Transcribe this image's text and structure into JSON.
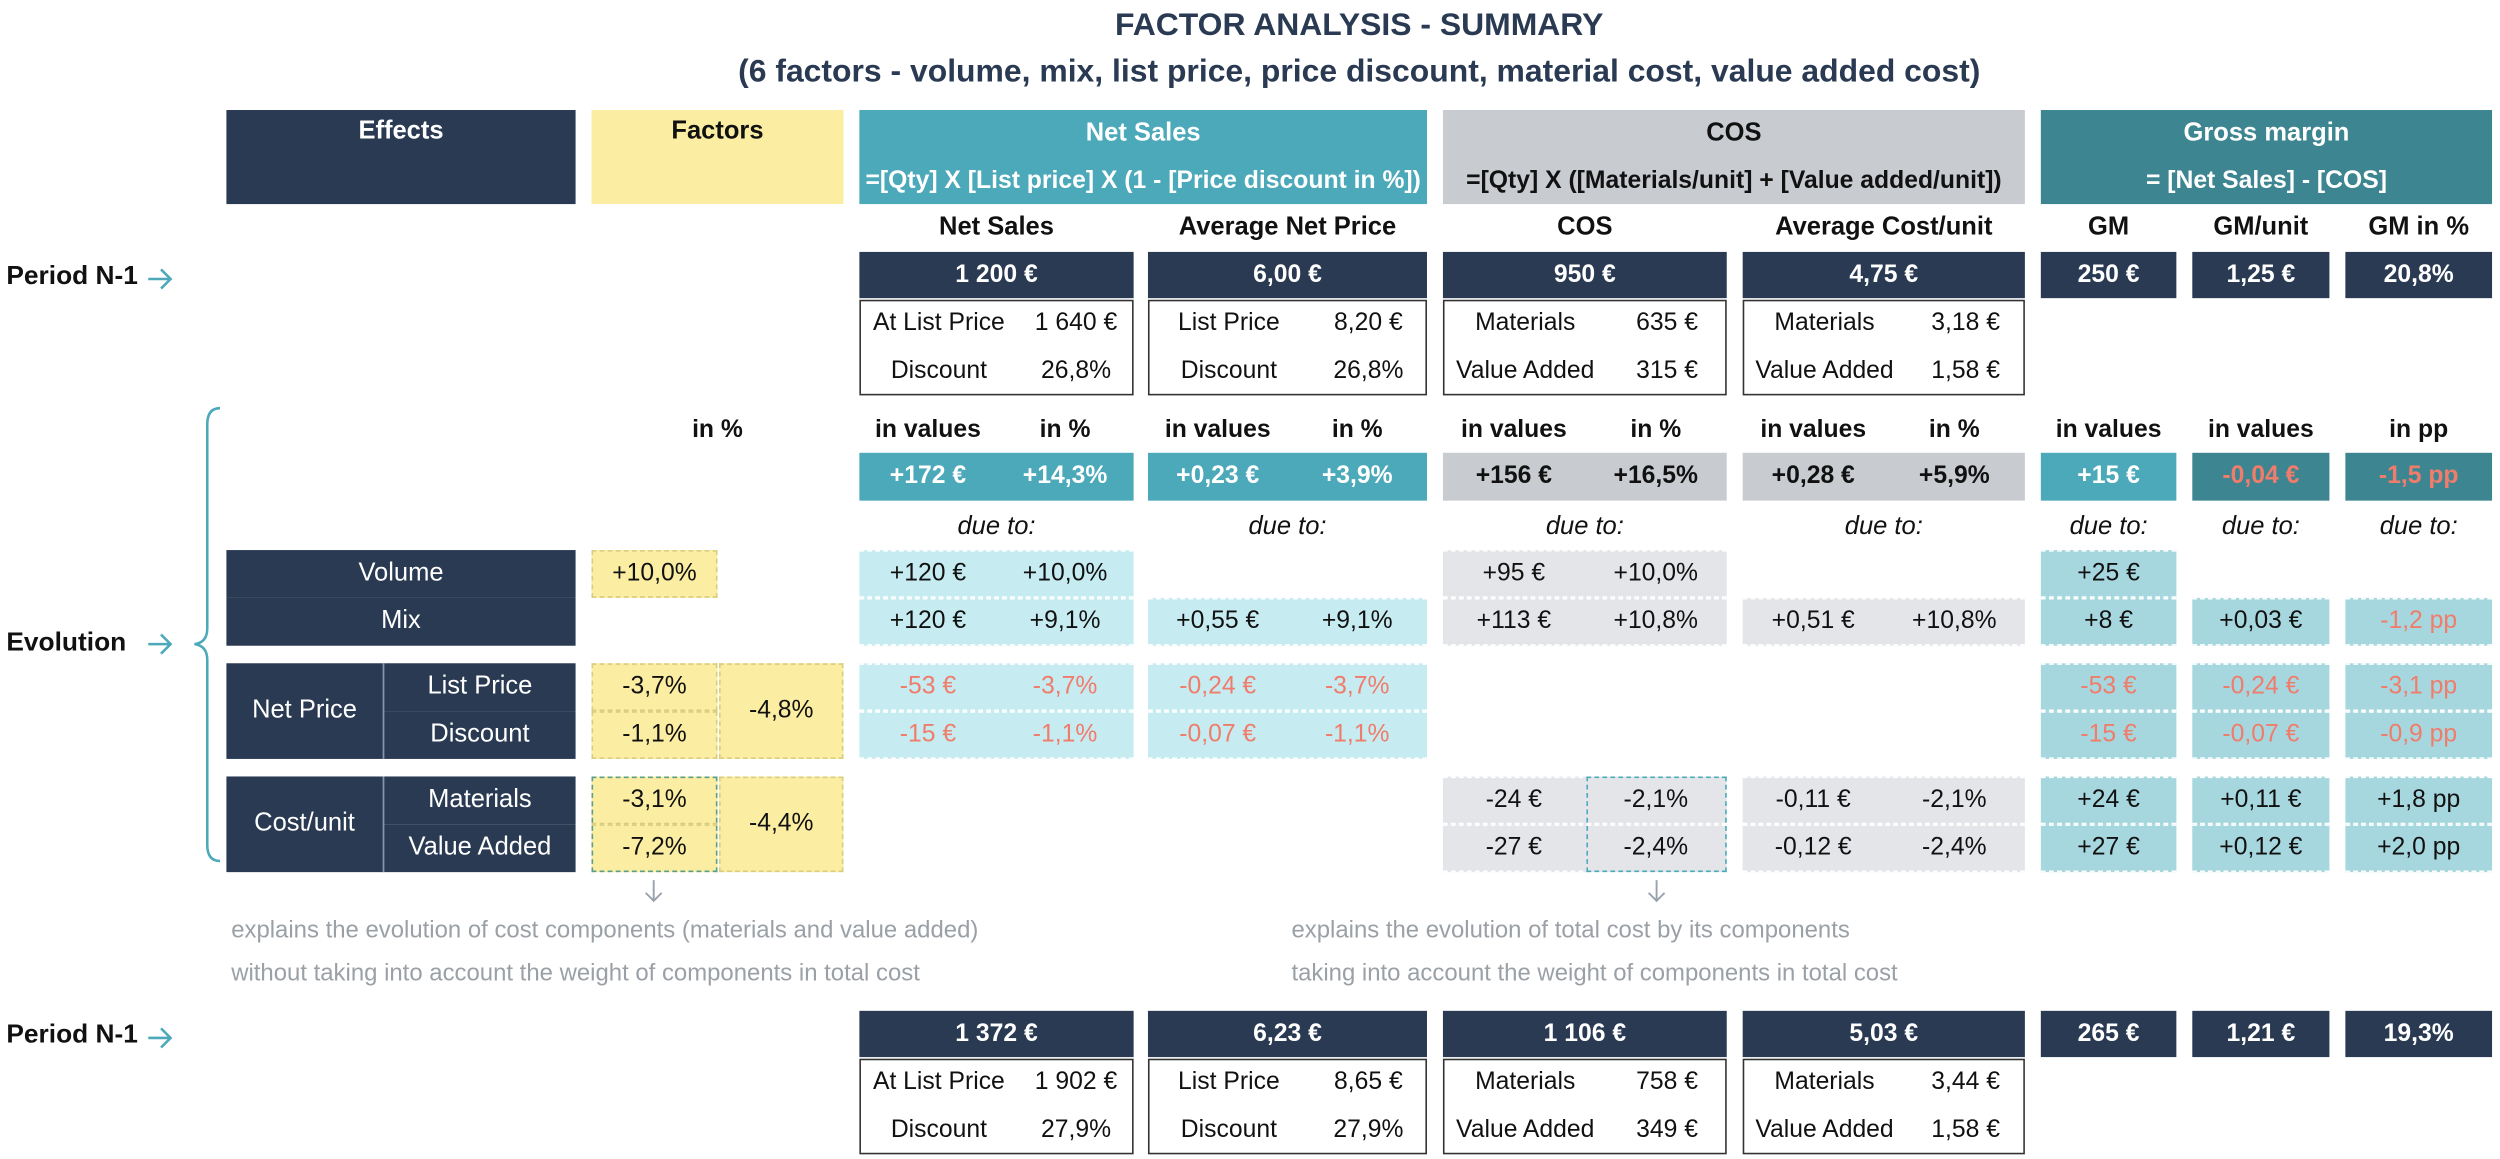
{
  "title": "FACTOR ANALYSIS - SUMMARY",
  "subtitle": "(6 factors - volume, mix, list price, price discount, material cost, value added cost)",
  "headers": {
    "effects": "Effects",
    "factors": "Factors",
    "net_sales": {
      "title": "Net Sales",
      "formula": "=[Qty] X [List price] X (1 - [Price discount in %])"
    },
    "cos": {
      "title": "COS",
      "formula": "=[Qty] X ([Materials/unit] + [Value added/unit])"
    },
    "gross_margin": {
      "title": "Gross margin",
      "formula": "= [Net Sales] - [COS]"
    }
  },
  "columns": [
    "Net Sales",
    "Average Net Price",
    "COS",
    "Average Cost/unit",
    "GM",
    "GM/unit",
    "GM in %"
  ],
  "period_start": {
    "label": "Period N-1",
    "totals": [
      "1 200 €",
      "6,00 €",
      "950 €",
      "4,75 €",
      "250 €",
      "1,25 €",
      "20,8%"
    ],
    "details": [
      [
        [
          "At List Price",
          "1 640 €"
        ],
        [
          "Discount",
          "26,8%"
        ]
      ],
      [
        [
          "List Price",
          "8,20 €"
        ],
        [
          "Discount",
          "26,8%"
        ]
      ],
      [
        [
          "Materials",
          "635 €"
        ],
        [
          "Value Added",
          "315 €"
        ]
      ],
      [
        [
          "Materials",
          "3,18 €"
        ],
        [
          "Value Added",
          "1,58 €"
        ]
      ]
    ]
  },
  "evolution": {
    "label": "Evolution",
    "factors_unit": "in %",
    "units": [
      [
        "in values",
        "in %"
      ],
      [
        "in values",
        "in %"
      ],
      [
        "in values",
        "in %"
      ],
      [
        "in values",
        "in %"
      ],
      [
        "in values"
      ],
      [
        "in values"
      ],
      [
        "in pp"
      ]
    ],
    "totals": [
      [
        "+172 €",
        "+14,3%"
      ],
      [
        "+0,23 €",
        "+3,9%"
      ],
      [
        "+156 €",
        "+16,5%"
      ],
      [
        "+0,28 €",
        "+5,9%"
      ],
      [
        "+15 €"
      ],
      [
        "-0,04 €"
      ],
      [
        "-1,5 pp"
      ]
    ],
    "due_to": "due to:",
    "effects": [
      {
        "label": "Volume",
        "factor": "+10,0%",
        "values": [
          [
            "+120 €",
            "+10,0%"
          ],
          null,
          [
            "+95 €",
            "+10,0%"
          ],
          null,
          [
            "+25 €"
          ],
          null,
          null
        ]
      },
      {
        "label": "Mix",
        "values": [
          [
            "+120 €",
            "+9,1%"
          ],
          [
            "+0,55 €",
            "+9,1%"
          ],
          [
            "+113 €",
            "+10,8%"
          ],
          [
            "+0,51 €",
            "+10,8%"
          ],
          [
            "+8 €"
          ],
          [
            "+0,03 €"
          ],
          [
            "-1,2 pp"
          ]
        ]
      },
      {
        "label": "Net Price",
        "factor": "-4,8%",
        "items": [
          {
            "label": "List Price",
            "factor": "-3,7%",
            "values": [
              [
                "-53 €",
                "-3,7%"
              ],
              [
                "-0,24 €",
                "-3,7%"
              ],
              null,
              null,
              [
                "-53 €"
              ],
              [
                "-0,24 €"
              ],
              [
                "-3,1 pp"
              ]
            ]
          },
          {
            "label": "Discount",
            "factor": "-1,1%",
            "values": [
              [
                "-15 €",
                "-1,1%"
              ],
              [
                "-0,07 €",
                "-1,1%"
              ],
              null,
              null,
              [
                "-15 €"
              ],
              [
                "-0,07 €"
              ],
              [
                "-0,9 pp"
              ]
            ]
          }
        ]
      },
      {
        "label": "Cost/unit",
        "factor": "-4,4%",
        "items": [
          {
            "label": "Materials",
            "factor": "-3,1%",
            "values": [
              null,
              null,
              [
                "-24 €",
                "-2,1%"
              ],
              [
                "-0,11 €",
                "-2,1%"
              ],
              [
                "+24 €"
              ],
              [
                "+0,11 €"
              ],
              [
                "+1,8 pp"
              ]
            ]
          },
          {
            "label": "Value Added",
            "factor": "-7,2%",
            "values": [
              null,
              null,
              [
                "-27 €",
                "-2,4%"
              ],
              [
                "-0,12 €",
                "-2,4%"
              ],
              [
                "+27 €"
              ],
              [
                "+0,12 €"
              ],
              [
                "+2,0 pp"
              ]
            ]
          }
        ]
      }
    ]
  },
  "notes": [
    [
      "explains the evolution of cost components (materials and value added)",
      "without taking into account the weight of components in total cost"
    ],
    [
      "explains the evolution of total cost by its components",
      "taking into account the weight of components in total cost"
    ]
  ],
  "period_end": {
    "label": "Period N-1",
    "totals": [
      "1 372 €",
      "6,23 €",
      "1 106 €",
      "5,03 €",
      "265 €",
      "1,21 €",
      "19,3%"
    ],
    "details": [
      [
        [
          "At List Price",
          "1 902 €"
        ],
        [
          "Discount",
          "27,9%"
        ]
      ],
      [
        [
          "List Price",
          "8,65 €"
        ],
        [
          "Discount",
          "27,9%"
        ]
      ],
      [
        [
          "Materials",
          "758 €"
        ],
        [
          "Value Added",
          "349 €"
        ]
      ],
      [
        [
          "Materials",
          "3,44 €"
        ],
        [
          "Value Added",
          "1,58 €"
        ]
      ]
    ]
  }
}
